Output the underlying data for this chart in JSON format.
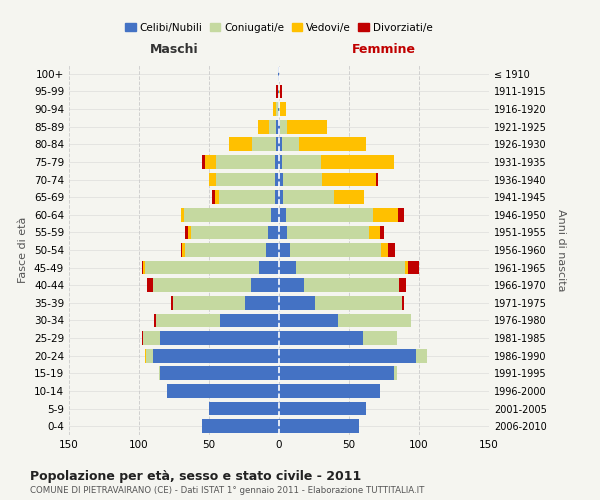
{
  "age_groups": [
    "0-4",
    "5-9",
    "10-14",
    "15-19",
    "20-24",
    "25-29",
    "30-34",
    "35-39",
    "40-44",
    "45-49",
    "50-54",
    "55-59",
    "60-64",
    "65-69",
    "70-74",
    "75-79",
    "80-84",
    "85-89",
    "90-94",
    "95-99",
    "100+"
  ],
  "birth_years": [
    "2006-2010",
    "2001-2005",
    "1996-2000",
    "1991-1995",
    "1986-1990",
    "1981-1985",
    "1976-1980",
    "1971-1975",
    "1966-1970",
    "1961-1965",
    "1956-1960",
    "1951-1955",
    "1946-1950",
    "1941-1945",
    "1936-1940",
    "1931-1935",
    "1926-1930",
    "1921-1925",
    "1916-1920",
    "1911-1915",
    "≤ 1910"
  ],
  "male_celibi": [
    55,
    50,
    80,
    85,
    90,
    85,
    42,
    24,
    20,
    14,
    9,
    8,
    6,
    3,
    3,
    3,
    2,
    2,
    1,
    1,
    1
  ],
  "male_coniugati": [
    0,
    0,
    0,
    1,
    5,
    12,
    46,
    52,
    70,
    82,
    58,
    55,
    62,
    40,
    42,
    42,
    17,
    5,
    1,
    0,
    0
  ],
  "male_vedovi": [
    0,
    0,
    0,
    0,
    1,
    0,
    0,
    0,
    0,
    1,
    2,
    2,
    2,
    3,
    5,
    8,
    17,
    8,
    2,
    0,
    0
  ],
  "male_divorziati": [
    0,
    0,
    0,
    0,
    0,
    1,
    1,
    1,
    4,
    1,
    1,
    2,
    0,
    2,
    0,
    2,
    0,
    0,
    0,
    1,
    0
  ],
  "fem_nubili": [
    57,
    62,
    72,
    82,
    98,
    60,
    42,
    26,
    18,
    12,
    8,
    6,
    5,
    3,
    3,
    2,
    2,
    1,
    0,
    0,
    0
  ],
  "fem_coniugate": [
    0,
    0,
    0,
    2,
    8,
    24,
    52,
    62,
    68,
    78,
    65,
    58,
    62,
    36,
    28,
    28,
    12,
    5,
    1,
    0,
    0
  ],
  "fem_vedove": [
    0,
    0,
    0,
    0,
    0,
    0,
    0,
    0,
    0,
    2,
    5,
    8,
    18,
    22,
    38,
    52,
    48,
    28,
    4,
    1,
    0
  ],
  "fem_divorziate": [
    0,
    0,
    0,
    0,
    0,
    0,
    0,
    1,
    5,
    8,
    5,
    3,
    4,
    0,
    2,
    0,
    0,
    0,
    0,
    1,
    0
  ],
  "color_celibi": "#4472c4",
  "color_coniugati": "#c5d9a0",
  "color_vedovi": "#ffc000",
  "color_divorziati": "#c00000",
  "xlim": 150,
  "title": "Popolazione per età, sesso e stato civile - 2011",
  "subtitle": "COMUNE DI PIETRAVAIRANO (CE) - Dati ISTAT 1° gennaio 2011 - Elaborazione TUTTITALIA.IT",
  "ylabel_left": "Fasce di età",
  "ylabel_right": "Anni di nascita",
  "bg_color": "#f5f5f0",
  "grid_color": "#cccccc"
}
